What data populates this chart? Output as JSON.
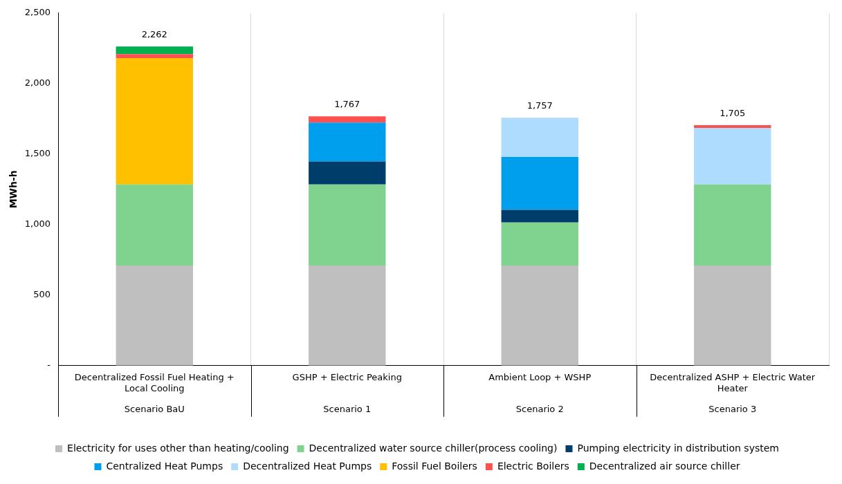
{
  "chart_data": {
    "type": "bar",
    "stacked": true,
    "ylabel": "MWh-h",
    "categories": [
      "Decentralized Fossil Fuel Heating + Local Cooling",
      "GSHP + Electric Peaking",
      "Ambient Loop + WSHP",
      "Decentralized ASHP + Electric Water Heater"
    ],
    "annotations": [
      "Scenario BaU",
      "Scenario 1",
      "Scenario 2",
      "Scenario 3"
    ],
    "series": [
      {
        "name": "Electricity for uses other than heating/cooling",
        "color": "#bfbfbf",
        "values": [
          710,
          710,
          710,
          710
        ]
      },
      {
        "name": "Decentralized water source chiller(process cooling)",
        "color": "#7fd38f",
        "values": [
          575,
          575,
          305,
          575
        ]
      },
      {
        "name": "Pumping electricity in distribution system",
        "color": "#003d6b",
        "values": [
          null,
          163,
          90,
          null
        ]
      },
      {
        "name": "Centralized Heat Pumps",
        "color": "#009fee",
        "values": [
          null,
          275,
          375,
          null
        ]
      },
      {
        "name": "Decentralized Heat Pumps",
        "color": "#addcfe",
        "values": [
          null,
          null,
          277,
          400
        ]
      },
      {
        "name": "Fossil Fuel Boilers",
        "color": "#ffc000",
        "values": [
          895,
          null,
          null,
          null
        ]
      },
      {
        "name": "Electric Boilers",
        "color": "#ff5050",
        "values": [
          28,
          44,
          null,
          20
        ]
      },
      {
        "name": "Decentralized air source chiller",
        "color": "#00b050",
        "values": [
          54,
          null,
          null,
          null
        ]
      }
    ],
    "totals": [
      "2,262",
      "1,767",
      "1,757",
      "1,705"
    ],
    "ylim": [
      0,
      2500
    ],
    "yticks": [
      {
        "value": 0,
        "label": "-"
      },
      500,
      {
        "value": 1000,
        "label": "1,000"
      },
      {
        "value": 1500,
        "label": "1,500"
      },
      {
        "value": 2000,
        "label": "2,000"
      },
      {
        "value": 2500,
        "label": "2,500"
      }
    ],
    "grid": "x",
    "legend": "bottom"
  }
}
